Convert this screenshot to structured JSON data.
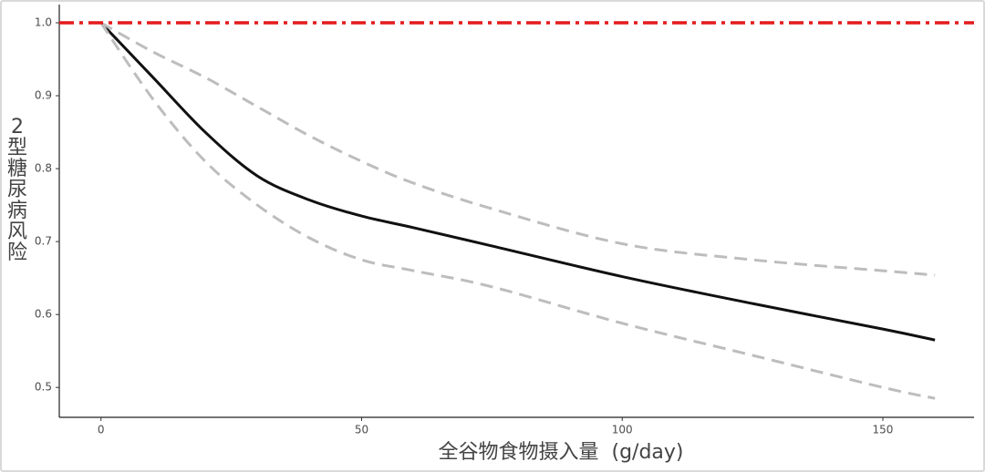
{
  "chart_data": {
    "type": "line",
    "x_label": "全谷物食物摄入量  (g/day)",
    "y_label": "2型糖尿病风险",
    "x": [
      0,
      10,
      20,
      30,
      40,
      50,
      60,
      75,
      100,
      125,
      150,
      160
    ],
    "series": [
      {
        "color": "#111111",
        "style": "solid",
        "values": [
          1.0,
          0.925,
          0.85,
          0.79,
          0.757,
          0.735,
          0.719,
          0.694,
          0.652,
          0.615,
          0.58,
          0.565
        ]
      },
      {
        "color": "#bdbdbd",
        "style": "dashed",
        "values": [
          1.0,
          0.96,
          0.925,
          0.885,
          0.845,
          0.81,
          0.78,
          0.745,
          0.697,
          0.675,
          0.66,
          0.654
        ]
      },
      {
        "color": "#bdbdbd",
        "style": "dashed",
        "values": [
          1.0,
          0.895,
          0.81,
          0.75,
          0.705,
          0.675,
          0.66,
          0.638,
          0.588,
          0.544,
          0.5,
          0.485
        ]
      }
    ],
    "reference_line": {
      "value": 1.0,
      "color": "#e31a1c"
    },
    "xlim": [
      -8,
      167.5
    ],
    "ylim": [
      0.459,
      1.025
    ],
    "xticks": [
      0,
      50,
      100,
      150
    ],
    "yticks": [
      {
        "value": 1.0,
        "label": "1.0"
      },
      0.9,
      0.8,
      0.7,
      0.6,
      0.5
    ],
    "grid": false
  }
}
